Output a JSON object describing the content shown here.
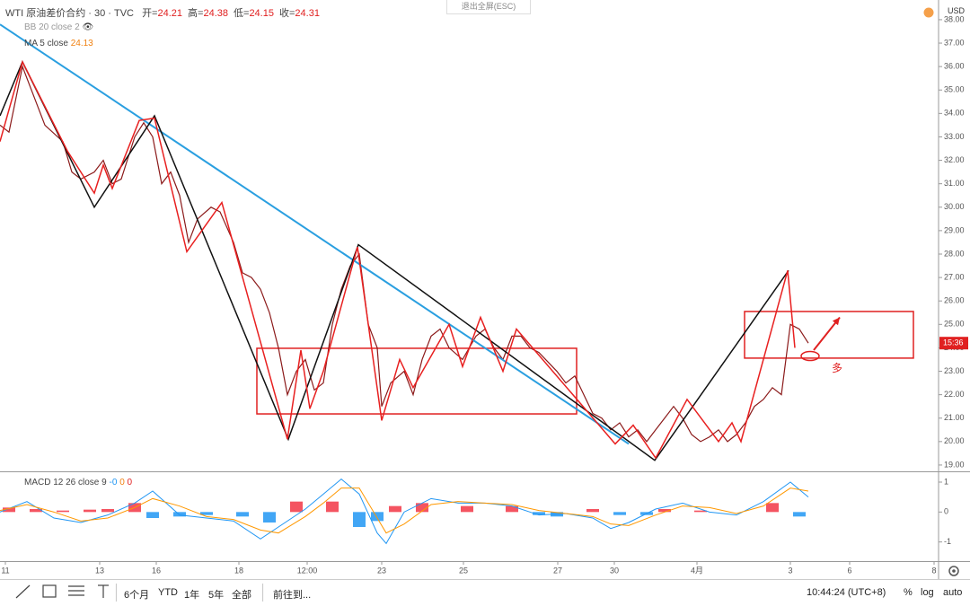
{
  "header": {
    "symbol": "WTI 原油差价合约 · 30 · TVC",
    "ohlc": [
      {
        "label": "开=",
        "value": 24.21
      },
      {
        "label": "高=",
        "value": 24.38
      },
      {
        "label": "低=",
        "value": 24.15
      },
      {
        "label": "收=",
        "value": 24.31
      }
    ],
    "bb": "BB 20 close 2",
    "ma": "MA 5 close",
    "ma_value": 24.13,
    "exit_fullscreen": "退出全屏(ESC)",
    "currency": "USD"
  },
  "macd_legend": {
    "name": "MACD 12 26 close 9",
    "values": [
      "-0",
      "0",
      "0"
    ]
  },
  "toolbar": {
    "ranges": [
      "6个月",
      "YTD",
      "1年",
      "5年",
      "全部"
    ],
    "goto": "前往到...",
    "time": "10:44:24 (UTC+8)",
    "percent": "%",
    "log": "log",
    "auto": "auto"
  },
  "chart_data": [
    {
      "type": "line",
      "xlim": [
        0,
        104.5
      ],
      "ylim": [
        18.73,
        38.84
      ],
      "xticks": [
        {
          "value": 0.6,
          "label": "11"
        },
        {
          "value": 11.1,
          "label": "13"
        },
        {
          "value": 17.4,
          "label": "16"
        },
        {
          "value": 26.6,
          "label": "18"
        },
        {
          "value": 34.2,
          "label": "12:00"
        },
        {
          "value": 42.5,
          "label": "23"
        },
        {
          "value": 51.6,
          "label": "25"
        },
        {
          "value": 62.1,
          "label": "27"
        },
        {
          "value": 68.4,
          "label": "30"
        },
        {
          "value": 77.6,
          "label": "4月"
        },
        {
          "value": 88,
          "label": "3"
        },
        {
          "value": 94.6,
          "label": "6"
        },
        {
          "value": 104,
          "label": "8"
        }
      ],
      "yticks": [
        {
          "value": 19,
          "label": "19.00"
        },
        {
          "value": 20,
          "label": "20.00"
        },
        {
          "value": 21,
          "label": "21.00"
        },
        {
          "value": 22,
          "label": "22.00"
        },
        {
          "value": 23,
          "label": "23.00"
        },
        {
          "value": 24,
          "label": "24.00"
        },
        {
          "value": 25,
          "label": "25.00"
        },
        {
          "value": 26,
          "label": "26.00"
        },
        {
          "value": 27,
          "label": "27.00"
        },
        {
          "value": 28,
          "label": "28.00"
        },
        {
          "value": 29,
          "label": "29.00"
        },
        {
          "value": 30,
          "label": "30.00"
        },
        {
          "value": 31,
          "label": "31.00"
        },
        {
          "value": 32,
          "label": "32.00"
        },
        {
          "value": 33,
          "label": "33.00"
        },
        {
          "value": 34,
          "label": "34.00"
        },
        {
          "value": 35,
          "label": "35.00"
        },
        {
          "value": 36,
          "label": "36.00"
        },
        {
          "value": 37,
          "label": "37.00"
        },
        {
          "value": 38,
          "label": "38.00"
        }
      ],
      "grid": false,
      "series": [
        {
          "color": "#8b1a1a",
          "width": 1.2,
          "x": [
            0,
            1,
            2.5,
            4,
            5,
            7,
            8,
            9,
            10.5,
            11.5,
            12.5,
            13.5,
            15,
            16,
            17,
            18,
            19,
            20,
            21,
            22,
            23.5,
            24.5,
            26,
            27,
            28,
            29,
            30,
            31,
            32,
            33,
            34,
            35,
            36,
            37,
            38,
            39,
            40,
            41,
            42,
            42.5,
            43.5,
            45,
            46,
            47,
            48,
            49,
            50,
            51.5,
            53,
            54,
            55,
            56,
            57,
            58,
            59,
            60,
            61,
            62,
            63,
            64,
            65,
            66,
            67,
            68,
            69,
            70,
            71,
            72,
            73,
            74,
            75,
            76,
            77,
            78,
            79,
            80,
            81,
            82,
            83,
            84,
            85,
            86,
            87,
            88,
            89,
            90
          ],
          "values": [
            33.5,
            33.2,
            36.0,
            34.5,
            33.5,
            32.8,
            31.5,
            31.2,
            31.5,
            32.0,
            31.0,
            31.2,
            33.0,
            33.6,
            33.0,
            31.0,
            31.5,
            30.5,
            28.5,
            29.5,
            30.0,
            29.8,
            28.5,
            27.2,
            27.0,
            26.5,
            25.5,
            24.0,
            22.0,
            23.0,
            23.5,
            22.2,
            22.5,
            25.0,
            26.5,
            27.5,
            28.0,
            25.0,
            24.0,
            21.5,
            22.5,
            23.0,
            22.0,
            23.5,
            24.5,
            24.8,
            24.0,
            23.5,
            24.5,
            24.8,
            24.0,
            23.5,
            24.5,
            24.5,
            24.0,
            23.8,
            23.4,
            23.0,
            22.5,
            22.8,
            22.0,
            21.2,
            21.0,
            20.5,
            20.8,
            20.2,
            20.5,
            20.0,
            20.5,
            21.0,
            21.5,
            21.0,
            20.3,
            20.0,
            20.2,
            20.5,
            20.0,
            20.3,
            20.8,
            21.5,
            21.8,
            22.3,
            22.0,
            25.0,
            24.8,
            24.2
          ]
        },
        {
          "color": "#2a9fe0",
          "width": 2,
          "x": [
            0,
            70
          ],
          "values": [
            37.8,
            19.9
          ]
        },
        {
          "color": "#111111",
          "width": 1.5,
          "x": [
            0,
            2.5,
            10.5,
            17.2,
            32.1,
            39.9,
            72.9,
            87.8
          ],
          "values": [
            33.9,
            36.2,
            30.0,
            33.9,
            20.1,
            28.4,
            19.2,
            27.3
          ]
        },
        {
          "color": "#e82020",
          "width": 1.5,
          "x": [
            0,
            2.5,
            7.5,
            10.5,
            11.5,
            12.5,
            15.5,
            17.2,
            20.8,
            24.7,
            32,
            33.5,
            34.5,
            36,
            39.8,
            42.5,
            44.5,
            46,
            50,
            51.5,
            53.5,
            56,
            57.5,
            68.5,
            70.5,
            73,
            76.5,
            80,
            81.5,
            82.5,
            87.7,
            88.5
          ],
          "values": [
            32.8,
            36.2,
            32.4,
            30.6,
            31.8,
            30.8,
            33.7,
            33.8,
            28.1,
            30.2,
            20.1,
            23.9,
            21.4,
            23.0,
            28.3,
            20.9,
            23.5,
            22.3,
            25.0,
            23.2,
            25.3,
            23.0,
            24.8,
            19.9,
            20.7,
            19.3,
            21.8,
            20.0,
            20.8,
            20.0,
            27.3,
            24.0
          ]
        }
      ],
      "boxes": [
        {
          "x": [
            28.6,
            64.2
          ],
          "y": [
            21.18,
            23.98
          ]
        },
        {
          "x": [
            82.9,
            101.7
          ],
          "y": [
            23.56,
            25.55
          ]
        }
      ],
      "box_color": "#e02020",
      "arrow": {
        "x": [
          90.6,
          93.5
        ],
        "y": [
          23.9,
          25.3
        ]
      },
      "marker": {
        "x": 90.2,
        "y": 23.65
      },
      "annotation": {
        "text": "多",
        "x": 92.6,
        "y": 23.1
      },
      "price_tag": "15:36"
    },
    {
      "type": "line",
      "ylim": [
        -1.64,
        1.3
      ],
      "yticks": [
        -1,
        0,
        1
      ],
      "histogram": {
        "x": [
          1,
          4,
          7,
          10,
          12,
          15,
          17,
          20,
          23,
          27,
          30,
          33,
          37,
          40,
          42,
          44,
          47,
          52,
          57,
          60,
          62,
          66,
          69,
          72,
          74,
          78,
          86,
          89
        ],
        "values": [
          0.15,
          0.1,
          0.05,
          0.08,
          0.1,
          0.3,
          -0.2,
          -0.15,
          -0.1,
          -0.15,
          -0.35,
          0.35,
          0.35,
          -0.5,
          -0.3,
          0.2,
          0.3,
          0.2,
          0.2,
          -0.1,
          -0.15,
          0.1,
          -0.1,
          -0.1,
          0.1,
          0.05,
          0.3,
          -0.15
        ],
        "colors": [
          "#f23645",
          "#2196f3"
        ]
      },
      "series": [
        {
          "color": "#2196f3",
          "width": 1,
          "x": [
            0,
            3,
            6,
            9,
            12,
            15,
            17,
            20,
            23,
            26,
            29,
            31,
            34,
            36,
            38,
            40,
            42,
            43,
            45,
            48,
            51,
            54,
            57,
            60,
            63,
            66,
            68,
            70,
            73,
            76,
            79,
            82,
            85,
            88,
            90
          ],
          "values": [
            0.0,
            0.35,
            -0.2,
            -0.35,
            -0.1,
            0.3,
            0.7,
            -0.1,
            -0.2,
            -0.3,
            -0.9,
            -0.5,
            0.1,
            0.6,
            1.1,
            0.6,
            -0.7,
            -1.05,
            0,
            0.45,
            0.3,
            0.3,
            0.2,
            -0.1,
            -0.05,
            -0.2,
            -0.55,
            -0.35,
            0.1,
            0.3,
            0,
            -0.1,
            0.35,
            1.0,
            0.5
          ]
        },
        {
          "color": "#ff9800",
          "width": 1,
          "x": [
            0,
            3,
            6,
            9,
            12,
            15,
            17,
            20,
            23,
            26,
            29,
            31,
            34,
            36,
            38,
            40,
            42,
            43,
            45,
            48,
            51,
            54,
            57,
            60,
            63,
            66,
            68,
            70,
            73,
            76,
            79,
            82,
            85,
            88,
            90
          ],
          "values": [
            0.05,
            0.25,
            0.0,
            -0.3,
            -0.2,
            0.15,
            0.45,
            0.2,
            -0.15,
            -0.25,
            -0.6,
            -0.7,
            -0.15,
            0.3,
            0.8,
            0.8,
            -0.2,
            -0.7,
            -0.4,
            0.25,
            0.35,
            0.3,
            0.25,
            0.05,
            -0.05,
            -0.15,
            -0.4,
            -0.45,
            -0.1,
            0.2,
            0.15,
            -0.05,
            0.2,
            0.8,
            0.7
          ]
        }
      ]
    }
  ]
}
